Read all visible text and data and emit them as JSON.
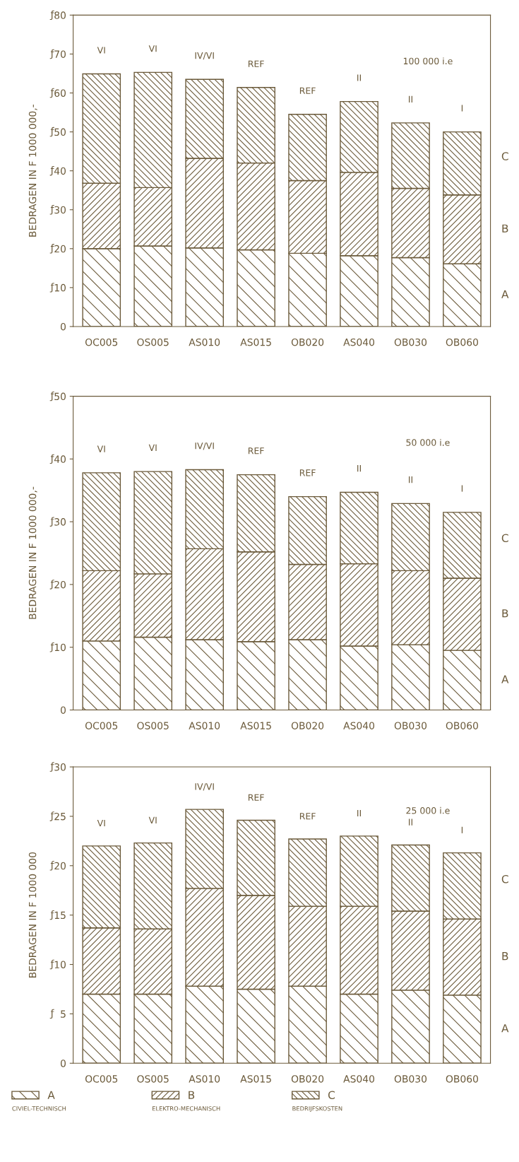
{
  "chart_data": [
    {
      "type": "bar",
      "stacked": true,
      "ylabel": "BEDRAGEN IN F 1000 000,-",
      "categories": [
        "OC005",
        "OS005",
        "AS010",
        "AS015",
        "OB020",
        "AS040",
        "OB030",
        "OB060"
      ],
      "series": [
        {
          "name": "A",
          "color": "#6b5a3a",
          "values": [
            20.0,
            20.7,
            20.2,
            19.7,
            18.8,
            18.2,
            17.7,
            16.1
          ]
        },
        {
          "name": "B",
          "color": "#6b5a3a",
          "values": [
            16.8,
            15.0,
            23.0,
            22.3,
            18.7,
            21.4,
            17.8,
            17.7
          ]
        },
        {
          "name": "C",
          "color": "#6b5a3a",
          "values": [
            28.1,
            29.6,
            20.3,
            19.4,
            17.0,
            18.2,
            16.8,
            16.2
          ]
        }
      ],
      "ylim": [
        0,
        80
      ],
      "yticks": [
        0,
        10,
        20,
        30,
        40,
        50,
        60,
        70,
        80
      ],
      "annotations": [
        "VI",
        "VI",
        "IV/VI",
        "REF",
        "REF",
        "II",
        "II",
        "I",
        "100 000 i.e",
        "ƒ"
      ],
      "grid": false,
      "legend": false
    },
    {
      "type": "bar",
      "stacked": true,
      "ylabel": "BEDRAGEN IN F 1000 000,-",
      "categories": [
        "OC005",
        "OS005",
        "AS010",
        "AS015",
        "OB020",
        "AS040",
        "OB030",
        "OB060"
      ],
      "series": [
        {
          "name": "A",
          "color": "#6b5a3a",
          "values": [
            11.0,
            11.6,
            11.2,
            10.9,
            11.2,
            10.2,
            10.4,
            9.5
          ]
        },
        {
          "name": "B",
          "color": "#6b5a3a",
          "values": [
            11.2,
            10.1,
            14.5,
            14.3,
            12.0,
            13.1,
            11.8,
            11.5
          ]
        },
        {
          "name": "C",
          "color": "#6b5a3a",
          "values": [
            15.6,
            16.3,
            12.6,
            12.3,
            10.8,
            11.4,
            10.7,
            10.5
          ]
        }
      ],
      "ylim": [
        0,
        50
      ],
      "yticks": [
        0,
        10,
        20,
        30,
        40,
        50
      ],
      "annotations": [
        "VI",
        "VI",
        "IV/VI",
        "REF",
        "REF",
        "II",
        "II",
        "I",
        "50 000 i.e",
        "ƒ"
      ],
      "grid": false,
      "legend": false
    },
    {
      "type": "bar",
      "stacked": true,
      "ylabel": "BEDRAGEN IN F 1000 000",
      "categories": [
        "OC005",
        "OS005",
        "AS010",
        "AS015",
        "OB020",
        "AS040",
        "OB030",
        "OB060"
      ],
      "series": [
        {
          "name": "A",
          "color": "#6b5a3a",
          "values": [
            7.0,
            7.0,
            7.8,
            7.5,
            7.8,
            7.0,
            7.4,
            6.9
          ]
        },
        {
          "name": "B",
          "color": "#6b5a3a",
          "values": [
            6.7,
            6.6,
            9.9,
            9.5,
            8.1,
            8.9,
            8.0,
            7.7
          ]
        },
        {
          "name": "C",
          "color": "#6b5a3a",
          "values": [
            8.3,
            8.7,
            8.0,
            7.6,
            6.8,
            7.1,
            6.7,
            6.7
          ]
        }
      ],
      "ylim": [
        0,
        30
      ],
      "yticks": [
        0,
        5,
        10,
        15,
        20,
        25,
        30
      ],
      "annotations": [
        "VI",
        "VI",
        "IV/VI",
        "REF",
        "REF",
        "II",
        "II",
        "I",
        "25 000 i.e",
        "ƒ",
        "CIVIEL-TECHNISCH",
        "ELEKTRO-MECHANISCH",
        "BEDRIJFSKOSTEN"
      ],
      "grid": false,
      "legend": "bottom"
    }
  ]
}
